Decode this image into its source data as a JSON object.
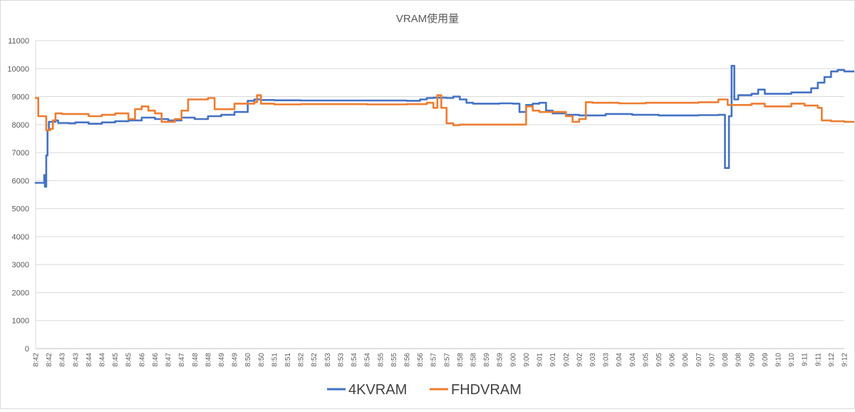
{
  "chart_data": {
    "type": "line",
    "title": "VRAM使用量",
    "xlabel": "",
    "ylabel": "",
    "ylim": [
      0,
      11000
    ],
    "yticks": [
      0,
      1000,
      2000,
      3000,
      4000,
      5000,
      6000,
      7000,
      8000,
      9000,
      10000,
      11000
    ],
    "grid": true,
    "legend_position": "bottom",
    "x_tick_labels": [
      "8:42",
      "8:42",
      "8:43",
      "8:43",
      "8:44",
      "8:44",
      "8:45",
      "8:45",
      "8:46",
      "8:46",
      "8:47",
      "8:47",
      "8:48",
      "8:48",
      "8:49",
      "8:49",
      "8:50",
      "8:50",
      "8:51",
      "8:51",
      "8:52",
      "8:52",
      "8:53",
      "8:53",
      "8:54",
      "8:54",
      "8:55",
      "8:55",
      "8:56",
      "8:56",
      "8:57",
      "8:57",
      "8:58",
      "8:58",
      "8:59",
      "8:59",
      "9:00",
      "9:00",
      "9:01",
      "9:01",
      "9:02",
      "9:02",
      "9:03",
      "9:03",
      "9:04",
      "9:04",
      "9:05",
      "9:05",
      "9:06",
      "9:06",
      "9:07",
      "9:07",
      "9:08",
      "9:08",
      "9:09",
      "9:09",
      "9:10",
      "9:10",
      "9:11",
      "9:11",
      "9:12",
      "9:12"
    ],
    "series": [
      {
        "name": "4KVRAM",
        "color": "#4472c4",
        "points": [
          [
            0,
            5920
          ],
          [
            0.55,
            5920
          ],
          [
            0.65,
            6200
          ],
          [
            0.7,
            5780
          ],
          [
            0.8,
            6900
          ],
          [
            0.9,
            7800
          ],
          [
            1.0,
            8100
          ],
          [
            1.5,
            8150
          ],
          [
            1.7,
            8060
          ],
          [
            2.5,
            8050
          ],
          [
            3,
            8080
          ],
          [
            4,
            8030
          ],
          [
            5,
            8080
          ],
          [
            6,
            8120
          ],
          [
            7,
            8150
          ],
          [
            8,
            8250
          ],
          [
            9,
            8200
          ],
          [
            10,
            8150
          ],
          [
            11,
            8250
          ],
          [
            12,
            8200
          ],
          [
            13,
            8300
          ],
          [
            14,
            8350
          ],
          [
            15,
            8450
          ],
          [
            15.5,
            8450
          ],
          [
            16,
            8850
          ],
          [
            16.5,
            8900
          ],
          [
            17,
            8880
          ],
          [
            18,
            8870
          ],
          [
            20,
            8860
          ],
          [
            25,
            8860
          ],
          [
            28,
            8850
          ],
          [
            29,
            8900
          ],
          [
            29.5,
            8950
          ],
          [
            30,
            8960
          ],
          [
            31,
            8950
          ],
          [
            31.5,
            9000
          ],
          [
            32,
            8900
          ],
          [
            32.5,
            8780
          ],
          [
            33,
            8750
          ],
          [
            34,
            8750
          ],
          [
            35,
            8760
          ],
          [
            36,
            8750
          ],
          [
            36.5,
            8450
          ],
          [
            37,
            8700
          ],
          [
            37.5,
            8750
          ],
          [
            38,
            8780
          ],
          [
            38.5,
            8500
          ],
          [
            39,
            8400
          ],
          [
            40,
            8350
          ],
          [
            41,
            8330
          ],
          [
            43,
            8380
          ],
          [
            45,
            8350
          ],
          [
            47,
            8330
          ],
          [
            50,
            8340
          ],
          [
            51.5,
            8350
          ],
          [
            52,
            6450
          ],
          [
            52.3,
            8300
          ],
          [
            52.5,
            10100
          ],
          [
            52.7,
            8900
          ],
          [
            53,
            9050
          ],
          [
            54,
            9100
          ],
          [
            54.5,
            9250
          ],
          [
            55,
            9100
          ],
          [
            56,
            9100
          ],
          [
            57,
            9150
          ],
          [
            58,
            9150
          ],
          [
            58.5,
            9300
          ],
          [
            59,
            9500
          ],
          [
            59.5,
            9700
          ],
          [
            60,
            9900
          ],
          [
            60.5,
            9950
          ],
          [
            61,
            9900
          ],
          [
            62,
            9900
          ]
        ]
      },
      {
        "name": "FHDVRAM",
        "color": "#ed7d31",
        "points": [
          [
            0,
            8950
          ],
          [
            0.2,
            8300
          ],
          [
            0.6,
            8300
          ],
          [
            0.8,
            7800
          ],
          [
            1.1,
            7850
          ],
          [
            1.3,
            8150
          ],
          [
            1.5,
            8400
          ],
          [
            2,
            8380
          ],
          [
            3,
            8380
          ],
          [
            4,
            8300
          ],
          [
            5,
            8350
          ],
          [
            6,
            8400
          ],
          [
            7,
            8200
          ],
          [
            7.5,
            8550
          ],
          [
            8,
            8650
          ],
          [
            8.5,
            8500
          ],
          [
            9,
            8400
          ],
          [
            9.5,
            8100
          ],
          [
            10,
            8100
          ],
          [
            10.5,
            8200
          ],
          [
            11,
            8500
          ],
          [
            11.5,
            8900
          ],
          [
            12,
            8900
          ],
          [
            13,
            8950
          ],
          [
            13.5,
            8550
          ],
          [
            14,
            8550
          ],
          [
            15,
            8750
          ],
          [
            16,
            8750
          ],
          [
            16.5,
            8800
          ],
          [
            16.7,
            9050
          ],
          [
            17,
            8750
          ],
          [
            18,
            8720
          ],
          [
            20,
            8730
          ],
          [
            25,
            8720
          ],
          [
            28,
            8730
          ],
          [
            29.5,
            8780
          ],
          [
            30,
            8600
          ],
          [
            30.3,
            9050
          ],
          [
            30.6,
            8600
          ],
          [
            31,
            8050
          ],
          [
            31.5,
            7980
          ],
          [
            32,
            8000
          ],
          [
            35,
            8000
          ],
          [
            36.5,
            8000
          ],
          [
            37,
            8650
          ],
          [
            37.5,
            8500
          ],
          [
            38,
            8450
          ],
          [
            39,
            8450
          ],
          [
            40,
            8300
          ],
          [
            40.5,
            8100
          ],
          [
            41,
            8200
          ],
          [
            41.5,
            8800
          ],
          [
            42,
            8780
          ],
          [
            44,
            8760
          ],
          [
            46,
            8780
          ],
          [
            48,
            8780
          ],
          [
            50,
            8800
          ],
          [
            51.5,
            8900
          ],
          [
            52.2,
            8700
          ],
          [
            53,
            8700
          ],
          [
            54,
            8750
          ],
          [
            55,
            8650
          ],
          [
            56,
            8650
          ],
          [
            57,
            8750
          ],
          [
            58,
            8680
          ],
          [
            59,
            8600
          ],
          [
            59.3,
            8150
          ],
          [
            60,
            8120
          ],
          [
            61,
            8100
          ],
          [
            62,
            8150
          ]
        ]
      }
    ]
  }
}
